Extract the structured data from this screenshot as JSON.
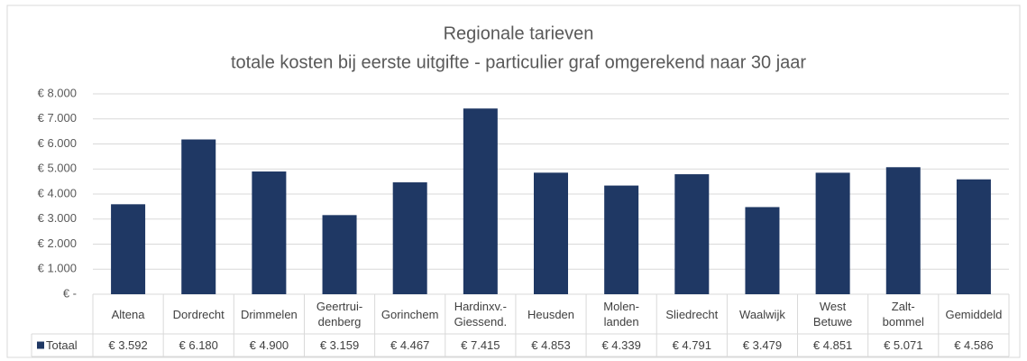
{
  "chart_data": {
    "type": "bar",
    "title": "Regionale tarieven",
    "subtitle": "totale kosten bij eerste uitgifte - particulier graf omgerekend naar 30 jaar",
    "categories": [
      "Altena",
      "Dordrecht",
      "Drimmelen",
      "Geertrui-\ndenberg",
      "Gorinchem",
      "Hardinxv.-\nGiessend.",
      "Heusden",
      "Molen-\nlanden",
      "Sliedrecht",
      "Waalwijk",
      "West\nBetuwe",
      "Zalt-\nbommel",
      "Gemiddeld"
    ],
    "series": [
      {
        "name": "Totaal",
        "color": "#1f3864",
        "values": [
          3592,
          6180,
          4900,
          3159,
          4467,
          7415,
          4853,
          4339,
          4791,
          3479,
          4851,
          5071,
          4586
        ],
        "value_labels": [
          "€ 3.592",
          "€ 6.180",
          "€ 4.900",
          "€ 3.159",
          "€ 4.467",
          "€ 7.415",
          "€ 4.853",
          "€ 4.339",
          "€ 4.791",
          "€ 3.479",
          "€ 4.851",
          "€ 5.071",
          "€ 4.586"
        ]
      }
    ],
    "ylim": [
      0,
      8000
    ],
    "yticks": [
      {
        "value": 0,
        "label": "€ -"
      },
      {
        "value": 1000,
        "label": "€ 1.000"
      },
      {
        "value": 2000,
        "label": "€ 2.000"
      },
      {
        "value": 3000,
        "label": "€ 3.000"
      },
      {
        "value": 4000,
        "label": "€ 4.000"
      },
      {
        "value": 5000,
        "label": "€ 5.000"
      },
      {
        "value": 6000,
        "label": "€ 6.000"
      },
      {
        "value": 7000,
        "label": "€ 7.000"
      },
      {
        "value": 8000,
        "label": "€ 8.000"
      }
    ],
    "grid": true
  }
}
